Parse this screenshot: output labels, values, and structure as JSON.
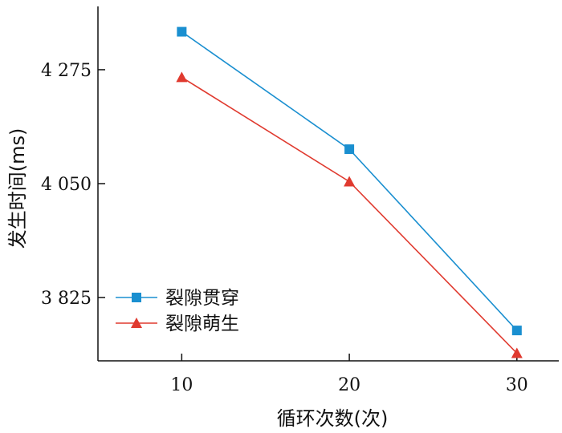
{
  "chart_data": {
    "type": "line",
    "x": [
      10,
      20,
      30
    ],
    "xlabel": "循环次数(次)",
    "ylabel": "发生时间(ms)",
    "x_ticks": [
      "10",
      "20",
      "30"
    ],
    "y_ticks": [
      {
        "value": 4275,
        "label": "4 275"
      },
      {
        "value": 4050,
        "label": "4 050"
      },
      {
        "value": 3825,
        "label": "3 825"
      }
    ],
    "xlim": [
      5,
      32.5
    ],
    "ylim": [
      3700,
      4400
    ],
    "grid": false,
    "legend_position": "bottom-left",
    "series": [
      {
        "name": "裂隙贯穿",
        "values": [
          4350,
          4118,
          3760
        ],
        "color": "#1a8fd0",
        "marker": "square"
      },
      {
        "name": "裂隙萌生",
        "values": [
          4260,
          4054,
          3715
        ],
        "color": "#e03a2f",
        "marker": "triangle"
      }
    ]
  }
}
